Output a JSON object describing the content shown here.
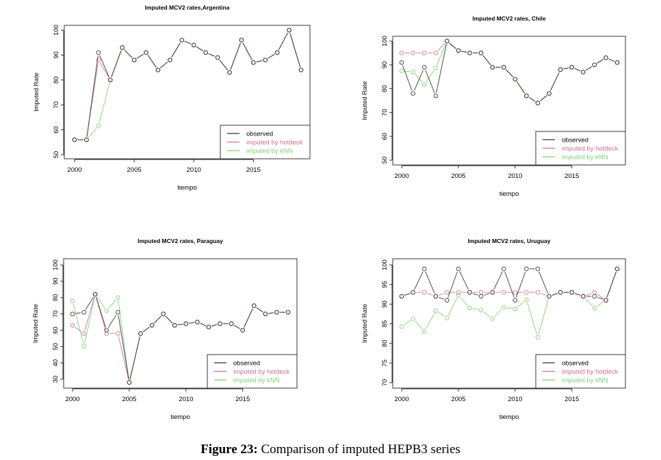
{
  "caption": {
    "label": "Figure 23:",
    "text": " Comparison of imputed HEPB3 series"
  },
  "colors": {
    "observed": "#333333",
    "hotdeck": "#cf6f8f",
    "knn": "#7fcf6f"
  },
  "legend_labels": [
    "observed",
    "imputed by hotdeck",
    "imputed  by kNN"
  ],
  "chart_data": [
    {
      "type": "line",
      "title": "Imputed MCV2 rates,Argentina",
      "xlabel": "tiempo",
      "ylabel": "Imputed Rate",
      "ylim": [
        50,
        100
      ],
      "yticks": [
        "50",
        "60",
        "70",
        "80",
        "90",
        "100"
      ],
      "xlim": [
        2000,
        2019
      ],
      "xticks": [
        "2000",
        "2005",
        "2010",
        "2015"
      ],
      "legend": "bottom-right",
      "x": [
        2000,
        2001,
        2002,
        2003,
        2004,
        2005,
        2006,
        2007,
        2008,
        2009,
        2010,
        2011,
        2012,
        2013,
        2014,
        2015,
        2016,
        2017,
        2018,
        2019
      ],
      "series": [
        {
          "name": "observed",
          "values": [
            56,
            56,
            91,
            80,
            93,
            88,
            91,
            84,
            88,
            96,
            94,
            91,
            89,
            83,
            96,
            87,
            88,
            91,
            100,
            84
          ]
        },
        {
          "name": "imputed by hotdeck",
          "values": [
            56,
            56,
            88,
            80,
            93,
            88,
            91,
            84,
            88,
            96,
            94,
            91,
            89,
            83,
            96,
            87,
            88,
            91,
            100,
            84
          ]
        },
        {
          "name": "imputed by kNN",
          "values": [
            56,
            56,
            61.5,
            80,
            93,
            88,
            91,
            84,
            88,
            96,
            94,
            91,
            89,
            83,
            96,
            87,
            88,
            91,
            100,
            84
          ]
        }
      ]
    },
    {
      "type": "line",
      "title": "Imputed MCV2 rates, Chile",
      "xlabel": "tiempo",
      "ylabel": "Imputed Rate",
      "ylim": [
        50,
        100
      ],
      "yticks": [
        "50",
        "60",
        "70",
        "80",
        "90",
        "100"
      ],
      "xlim": [
        2000,
        2019
      ],
      "xticks": [
        "2000",
        "2005",
        "2010",
        "2015"
      ],
      "legend": "bottom-right",
      "x": [
        2000,
        2001,
        2002,
        2003,
        2004,
        2005,
        2006,
        2007,
        2008,
        2009,
        2010,
        2011,
        2012,
        2013,
        2014,
        2015,
        2016,
        2017,
        2018,
        2019
      ],
      "series": [
        {
          "name": "observed",
          "values": [
            91,
            78,
            89,
            77,
            100,
            96,
            95,
            95,
            89,
            89,
            84,
            77,
            74,
            78,
            88,
            89,
            87,
            90,
            93,
            91
          ]
        },
        {
          "name": "imputed by hotdeck",
          "values": [
            95,
            95,
            95,
            95,
            100,
            96,
            95,
            95,
            89,
            89,
            84,
            77,
            74,
            78,
            88,
            89,
            87,
            90,
            93,
            91
          ]
        },
        {
          "name": "imputed by kNN",
          "values": [
            87.5,
            87,
            81.8,
            88.7,
            100,
            96,
            95,
            95,
            89,
            89,
            84,
            77,
            74,
            78,
            88,
            89,
            87,
            90,
            93,
            91
          ]
        }
      ]
    },
    {
      "type": "line",
      "title": "Imputed MCV2 rates, Paraguay",
      "xlabel": "tiempo",
      "ylabel": "Imputed Rate",
      "ylim": [
        30,
        100
      ],
      "yticks": [
        "30",
        "40",
        "50",
        "60",
        "70",
        "80",
        "90",
        "100"
      ],
      "xlim": [
        2000,
        2019
      ],
      "xticks": [
        "2000",
        "2005",
        "2010",
        "2015"
      ],
      "legend": "bottom-right",
      "x": [
        2000,
        2001,
        2002,
        2003,
        2004,
        2005,
        2006,
        2007,
        2008,
        2009,
        2010,
        2011,
        2012,
        2013,
        2014,
        2015,
        2016,
        2017,
        2018,
        2019
      ],
      "series": [
        {
          "name": "observed",
          "values": [
            70,
            71,
            82,
            60,
            71,
            28,
            58,
            63,
            70,
            63,
            64,
            65,
            62,
            64,
            64,
            60,
            75,
            70,
            71,
            71
          ]
        },
        {
          "name": "imputed by hotdeck",
          "values": [
            63,
            58,
            82,
            58,
            58,
            28,
            58,
            63,
            70,
            63,
            64,
            65,
            62,
            64,
            64,
            60,
            75,
            70,
            71,
            71
          ]
        },
        {
          "name": "imputed by kNN",
          "values": [
            78,
            50,
            82,
            72,
            80,
            28,
            58,
            63,
            70,
            63,
            64,
            65,
            62,
            64,
            64,
            60,
            75,
            70,
            71,
            71
          ]
        }
      ]
    },
    {
      "type": "line",
      "title": "Imputed MCV2 rates, Uruguay",
      "xlabel": "tiempo",
      "ylabel": "Imputed Rate",
      "ylim": [
        70,
        100
      ],
      "yticks": [
        "70",
        "75",
        "80",
        "85",
        "90",
        "95",
        "100"
      ],
      "xlim": [
        2000,
        2019
      ],
      "xticks": [
        "2000",
        "2005",
        "2010",
        "2015"
      ],
      "legend": "bottom-right",
      "x": [
        2000,
        2001,
        2002,
        2003,
        2004,
        2005,
        2006,
        2007,
        2008,
        2009,
        2010,
        2011,
        2012,
        2013,
        2014,
        2015,
        2016,
        2017,
        2018,
        2019
      ],
      "series": [
        {
          "name": "observed",
          "values": [
            92,
            93,
            99,
            92,
            91,
            99,
            93,
            92,
            93,
            99,
            91,
            99,
            99,
            92,
            93,
            93,
            92,
            92,
            91,
            99
          ]
        },
        {
          "name": "imputed by hotdeck",
          "values": [
            92,
            93,
            93,
            92,
            93,
            93,
            93,
            93,
            93,
            93,
            93,
            93,
            93,
            92,
            93,
            93,
            92,
            93,
            91,
            99
          ]
        },
        {
          "name": "imputed by kNN",
          "values": [
            84.3,
            86.3,
            83,
            88.3,
            86.5,
            92.2,
            89,
            88.5,
            86.3,
            89.2,
            88.8,
            91.1,
            81.6,
            92,
            93,
            93,
            92,
            89,
            91,
            99
          ]
        }
      ]
    }
  ]
}
